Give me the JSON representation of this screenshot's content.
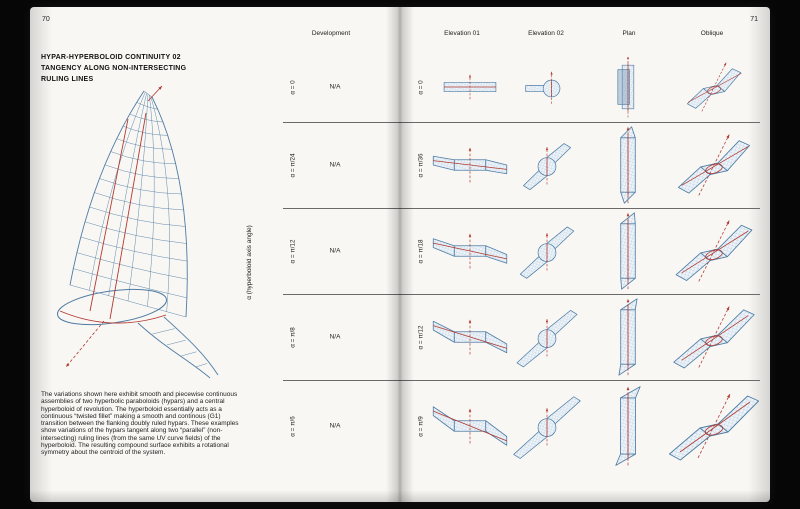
{
  "page_left": {
    "page_number": "70",
    "title_lines": [
      "Hypar-Hyperboloid Continuity 02",
      "Tangency along non-intersecting",
      "ruling lines"
    ],
    "body_text": "The variations shown here exhibit smooth and piecewise continuous assemblies of two hyperbolic paraboloids (hypars) and a central hyperboloid of revolution. The hyperboloid essentially acts as a continuous “twisted fillet” making a smooth and continous (G1) transition between the flanking doubly ruled hypars. These examples show variations of the hypars tangent along two “parallel” (non-intersecting) ruling lines (from the same UV curve fields) of the hyperboloid. The resulting compound surface exhibits a rotational symmetry about the centroid of the system."
  },
  "page_right": {
    "page_number": "71",
    "columns": [
      "Development",
      "Elevation 01",
      "Elevation 02",
      "Plan",
      "Oblique"
    ],
    "axis_label": "α (hyperboloid axis angle)",
    "rows": [
      {
        "alpha": "α = 0",
        "development": "N/A",
        "beta": "α = 0"
      },
      {
        "alpha": "α = π/24",
        "development": "N/A",
        "beta": "α = π/36"
      },
      {
        "alpha": "α = π/12",
        "development": "N/A",
        "beta": "α = π/18"
      },
      {
        "alpha": "α = π/8",
        "development": "N/A",
        "beta": "α = π/12"
      },
      {
        "alpha": "α = π/6",
        "development": "N/A",
        "beta": "α = π/9"
      }
    ]
  },
  "colors": {
    "blue": "#4f7ca3",
    "red": "#b23a30",
    "fill": "#edf3f8",
    "hatch": "#a6c2d8"
  }
}
